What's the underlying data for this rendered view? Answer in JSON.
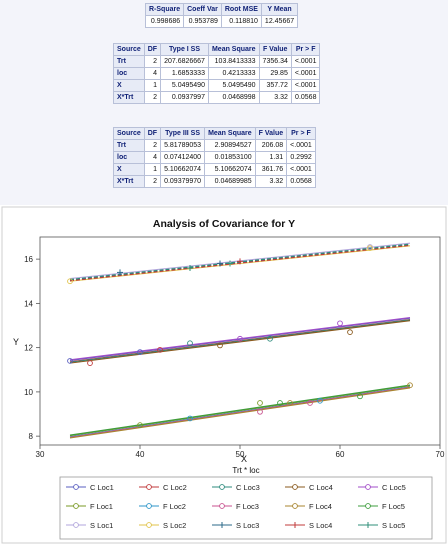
{
  "fit_stats": {
    "headers": [
      "R-Square",
      "Coeff Var",
      "Root MSE",
      "Y Mean"
    ],
    "row": [
      "0.998686",
      "0.953789",
      "0.118810",
      "12.45667"
    ]
  },
  "type1": {
    "headers": [
      "Source",
      "DF",
      "Type I SS",
      "Mean Square",
      "F Value",
      "Pr > F"
    ],
    "rows": [
      [
        "Trt",
        "2",
        "207.6826667",
        "103.8413333",
        "7356.34",
        "<.0001"
      ],
      [
        "loc",
        "4",
        "1.6853333",
        "0.4213333",
        "29.85",
        "<.0001"
      ],
      [
        "X",
        "1",
        "5.0495490",
        "5.0495490",
        "357.72",
        "<.0001"
      ],
      [
        "X*Trt",
        "2",
        "0.0937997",
        "0.0468998",
        "3.32",
        "0.0568"
      ]
    ]
  },
  "type3": {
    "headers": [
      "Source",
      "DF",
      "Type III SS",
      "Mean Square",
      "F Value",
      "Pr > F"
    ],
    "rows": [
      [
        "Trt",
        "2",
        "5.81789053",
        "2.90894527",
        "206.08",
        "<.0001"
      ],
      [
        "loc",
        "4",
        "0.07412400",
        "0.01853100",
        "1.31",
        "0.2992"
      ],
      [
        "X",
        "1",
        "5.10662074",
        "5.10662074",
        "361.76",
        "<.0001"
      ],
      [
        "X*Trt",
        "2",
        "0.09379970",
        "0.04689985",
        "3.32",
        "0.0568"
      ]
    ]
  },
  "chart_data": {
    "type": "scatter",
    "title": "Analysis of Covariance for Y",
    "xlabel": "X",
    "ylabel": "Y",
    "xlim": [
      30,
      70
    ],
    "ylim": [
      7.6,
      17
    ],
    "xticks": [
      "30",
      "40",
      "50",
      "60",
      "70"
    ],
    "yticks": [
      "8",
      "10",
      "12",
      "14",
      "16"
    ],
    "legend_title": "Trt * loc",
    "legend_position": "bottom",
    "series": [
      {
        "name": "C Loc1",
        "color": "#5a5fc0",
        "marker": "circle",
        "line": [
          11.42,
          13.33
        ],
        "points": [
          [
            33,
            11.4
          ],
          [
            40,
            11.8
          ]
        ]
      },
      {
        "name": "C Loc2",
        "color": "#c0393b",
        "marker": "circle",
        "line": [
          11.36,
          13.27
        ],
        "points": [
          [
            35,
            11.3
          ],
          [
            42,
            11.9
          ]
        ]
      },
      {
        "name": "C Loc3",
        "color": "#2e8b7d",
        "marker": "circle",
        "line": [
          11.34,
          13.25
        ],
        "points": [
          [
            45,
            12.2
          ],
          [
            53,
            12.4
          ]
        ]
      },
      {
        "name": "C Loc4",
        "color": "#8a5a1e",
        "marker": "circle",
        "line": [
          11.3,
          13.22
        ],
        "points": [
          [
            48,
            12.1
          ],
          [
            61,
            12.7
          ]
        ]
      },
      {
        "name": "C Loc5",
        "color": "#a24cc8",
        "marker": "circle",
        "line": [
          11.45,
          13.36
        ],
        "points": [
          [
            50,
            12.4
          ],
          [
            60,
            13.1
          ]
        ]
      },
      {
        "name": "F Loc1",
        "color": "#7a9a25",
        "marker": "circle",
        "line": [
          8.02,
          10.28
        ],
        "points": [
          [
            40,
            8.5
          ],
          [
            52,
            9.5
          ]
        ]
      },
      {
        "name": "F Loc2",
        "color": "#2d96c8",
        "marker": "circle",
        "line": [
          7.97,
          10.23
        ],
        "points": [
          [
            45,
            8.8
          ],
          [
            58,
            9.6
          ]
        ]
      },
      {
        "name": "F Loc3",
        "color": "#c8528f",
        "marker": "circle",
        "line": [
          7.95,
          10.21
        ],
        "points": [
          [
            52,
            9.1
          ],
          [
            57,
            9.5
          ]
        ]
      },
      {
        "name": "F Loc4",
        "color": "#a8852f",
        "marker": "circle",
        "line": [
          7.92,
          10.18
        ],
        "points": [
          [
            55,
            9.5
          ],
          [
            67,
            10.3
          ]
        ]
      },
      {
        "name": "F Loc5",
        "color": "#3c9c3c",
        "marker": "circle",
        "line": [
          8.05,
          10.31
        ],
        "points": [
          [
            54,
            9.5
          ],
          [
            62,
            9.8
          ]
        ]
      },
      {
        "name": "S Loc1",
        "color": "#b2a6dc",
        "marker": "circle",
        "line": [
          15.12,
          16.72
        ],
        "points": [
          [
            63,
            16.55
          ]
        ]
      },
      {
        "name": "S Loc2",
        "color": "#e0c34a",
        "marker": "circle",
        "line": [
          15.0,
          16.6
        ],
        "points": [
          [
            33,
            15.0
          ],
          [
            63,
            16.5
          ]
        ]
      },
      {
        "name": "S Loc3",
        "color": "#2b6a88",
        "marker": "plus",
        "line": [
          15.05,
          16.65
        ],
        "points": [
          [
            38,
            15.4
          ],
          [
            48,
            15.8
          ]
        ]
      },
      {
        "name": "S Loc4",
        "color": "#c23b3b",
        "marker": "plus",
        "line": [
          15.02,
          16.62
        ],
        "points": [
          [
            50,
            15.9
          ]
        ]
      },
      {
        "name": "S Loc5",
        "color": "#2f8f7a",
        "marker": "plus",
        "line": [
          15.08,
          16.68
        ],
        "points": [
          [
            45,
            15.6
          ],
          [
            49,
            15.8
          ]
        ]
      }
    ]
  }
}
